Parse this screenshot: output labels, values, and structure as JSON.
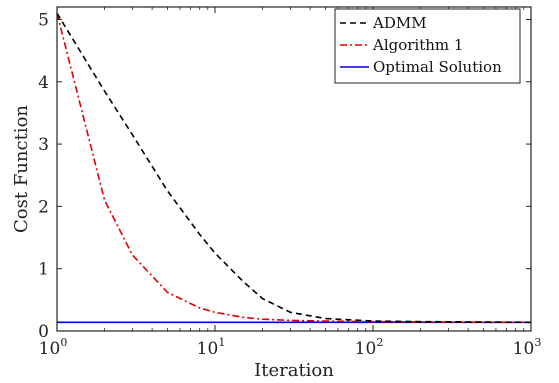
{
  "chart_data": {
    "type": "line",
    "xscale": "log",
    "xlabel": "Iteration",
    "ylabel": "Cost Function",
    "xlim": [
      1,
      1000
    ],
    "ylim": [
      0,
      5.2
    ],
    "xticks": [
      {
        "value": 1,
        "base": "10",
        "exp": "0"
      },
      {
        "value": 10,
        "base": "10",
        "exp": "1"
      },
      {
        "value": 100,
        "base": "10",
        "exp": "2"
      },
      {
        "value": 1000,
        "base": "10",
        "exp": "3"
      }
    ],
    "yticks": [
      0,
      1,
      2,
      3,
      4,
      5
    ],
    "legend_position": "top-right",
    "series": [
      {
        "name": "ADMM",
        "color": "#000000",
        "style": "dashed",
        "x": [
          1,
          2,
          3,
          5,
          8,
          10,
          15,
          20,
          30,
          50,
          100,
          200,
          500,
          1000
        ],
        "y": [
          5.1,
          3.85,
          3.15,
          2.25,
          1.55,
          1.25,
          0.8,
          0.52,
          0.3,
          0.2,
          0.16,
          0.15,
          0.145,
          0.14
        ]
      },
      {
        "name": "Algorithm 1",
        "color": "#e00000",
        "style": "dashdot",
        "x": [
          1,
          2,
          3,
          5,
          8,
          10,
          15,
          20,
          30,
          50,
          100,
          200,
          500,
          1000
        ],
        "y": [
          5.1,
          2.1,
          1.22,
          0.62,
          0.37,
          0.3,
          0.22,
          0.19,
          0.17,
          0.16,
          0.15,
          0.145,
          0.14,
          0.14
        ]
      },
      {
        "name": "Optimal Solution",
        "color": "#0000cc",
        "style": "solid",
        "x": [
          1,
          1000
        ],
        "y": [
          0.14,
          0.14
        ]
      }
    ]
  }
}
